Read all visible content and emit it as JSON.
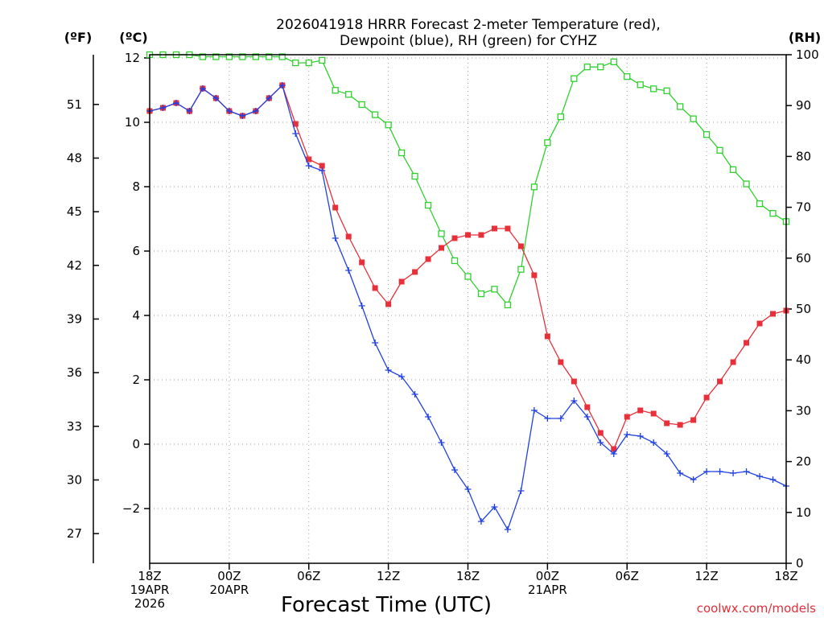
{
  "chart_data": {
    "type": "line",
    "title": [
      "2026041918 HRRR Forecast 2-meter Temperature (red),",
      "Dewpoint (blue), RH (green) for CYHZ"
    ],
    "xlabel": "Forecast Time (UTC)",
    "credit": "coolwx.com/models",
    "unit_labels": {
      "fahrenheit": "(ºF)",
      "celsius": "(ºC)",
      "rh": "(RH)"
    },
    "x_hours_range": [
      0,
      48
    ],
    "x_ticks": [
      {
        "hour": 0,
        "lines": [
          "18Z",
          "19APR",
          "2026"
        ]
      },
      {
        "hour": 6,
        "lines": [
          "00Z",
          "20APR"
        ]
      },
      {
        "hour": 12,
        "lines": [
          "06Z"
        ]
      },
      {
        "hour": 18,
        "lines": [
          "12Z"
        ]
      },
      {
        "hour": 24,
        "lines": [
          "18Z"
        ]
      },
      {
        "hour": 30,
        "lines": [
          "00Z",
          "21APR"
        ]
      },
      {
        "hour": 36,
        "lines": [
          "06Z"
        ]
      },
      {
        "hour": 42,
        "lines": [
          "12Z"
        ]
      },
      {
        "hour": 48,
        "lines": [
          "18Z"
        ]
      }
    ],
    "celsius_range": [
      -3.7,
      12.1
    ],
    "celsius_ticks": [
      "12",
      "10",
      "8",
      "6",
      "4",
      "2",
      "0",
      "−2"
    ],
    "fahrenheit_ticks": [
      "51",
      "48",
      "45",
      "42",
      "39",
      "36",
      "33",
      "30",
      "27"
    ],
    "rh_range": [
      0,
      100
    ],
    "rh_ticks": [
      "100",
      "90",
      "80",
      "70",
      "60",
      "50",
      "40",
      "30",
      "20",
      "10",
      "0"
    ],
    "series": [
      {
        "name": "Temperature (°C)",
        "color": "#e8303a",
        "marker": "filled-square",
        "values": [
          10.35,
          10.45,
          10.6,
          10.35,
          11.05,
          10.75,
          10.35,
          10.2,
          10.35,
          10.75,
          11.15,
          9.95,
          8.85,
          8.65,
          7.35,
          6.45,
          5.65,
          4.85,
          4.35,
          5.05,
          5.35,
          5.75,
          6.1,
          6.4,
          6.5,
          6.5,
          6.7,
          6.7,
          6.15,
          5.25,
          3.35,
          2.55,
          1.95,
          1.15,
          0.35,
          -0.15,
          0.85,
          1.05,
          0.95,
          0.65,
          0.6,
          0.75,
          1.45,
          1.95,
          2.55,
          3.15,
          3.75,
          4.05,
          4.15
        ]
      },
      {
        "name": "Dewpoint (°C)",
        "color": "#2040e0",
        "marker": "plus",
        "values": [
          10.35,
          10.45,
          10.6,
          10.35,
          11.05,
          10.75,
          10.35,
          10.2,
          10.35,
          10.75,
          11.15,
          9.65,
          8.65,
          8.5,
          6.4,
          5.4,
          4.3,
          3.15,
          2.3,
          2.1,
          1.55,
          0.85,
          0.05,
          -0.8,
          -1.4,
          -2.4,
          -1.95,
          -2.65,
          -1.45,
          1.05,
          0.8,
          0.8,
          1.35,
          0.85,
          0.05,
          -0.3,
          0.3,
          0.25,
          0.05,
          -0.3,
          -0.9,
          -1.1,
          -0.85,
          -0.85,
          -0.9,
          -0.85,
          -1.0,
          -1.1,
          -1.3
        ]
      },
      {
        "name": "RH (%)",
        "color": "#30d030",
        "marker": "open-square",
        "values": [
          100,
          100,
          100,
          100,
          99.6,
          99.6,
          99.6,
          99.6,
          99.6,
          99.6,
          99.6,
          98.4,
          98.4,
          98.9,
          93.0,
          92.2,
          90.2,
          88.2,
          86.2,
          80.7,
          76.1,
          70.4,
          64.8,
          59.5,
          56.4,
          53.0,
          53.9,
          50.8,
          57.8,
          74.0,
          82.7,
          87.8,
          95.3,
          97.6,
          97.6,
          98.6,
          95.7,
          94.1,
          93.3,
          92.9,
          89.8,
          87.4,
          84.3,
          81.2,
          77.4,
          74.6,
          70.7,
          68.8,
          67.2
        ]
      }
    ]
  }
}
